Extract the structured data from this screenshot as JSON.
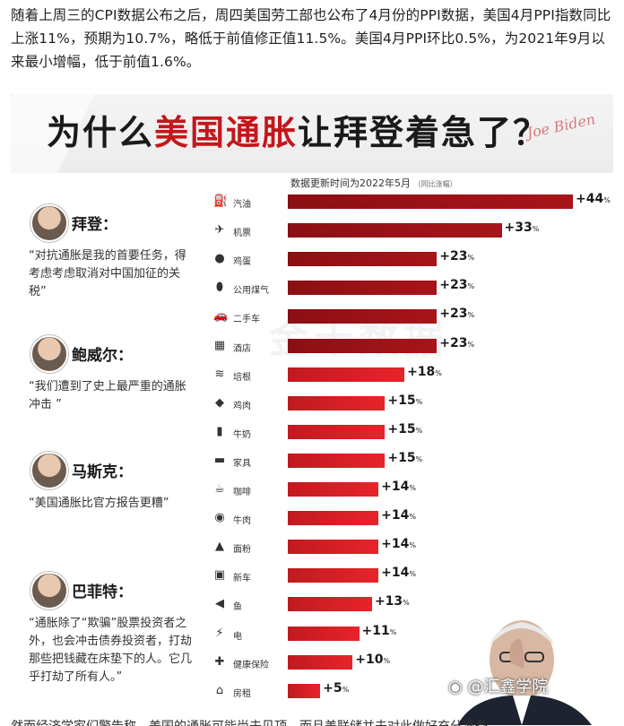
{
  "intro_text": "随着上周三的CPI数据公布之后，周四美国劳工部也公布了4月份的PPI数据，美国4月PPI指数同比上涨11%，预期为10.7%，略低于前值修正值11.5%。美国4月PPI环比0.5%，为2021年9月以来最小增幅，低于前值1.6%。",
  "infographic": {
    "title_part1": "为什么",
    "title_part2": "美国通胀",
    "title_part3": "让拜登着急了？",
    "signature": "Joe Biden",
    "subtitle": "数据更新时间为2022年5月",
    "subtitle_note": "（同比涨幅）",
    "faint_watermark": "金十数据"
  },
  "people": [
    {
      "name": "拜登：",
      "quote": "“对抗通胀是我的首要任务，得考虑考虑取消对中国加征的关税”"
    },
    {
      "name": "鲍威尔：",
      "quote": "“我们遭到了史上最严重的通胀冲击 ”"
    },
    {
      "name": "马斯克：",
      "quote": "“美国通胀比官方报告更糟”"
    },
    {
      "name": "巴菲特：",
      "quote": "“通胀除了“欺骗”股票投资者之外，也会冲击债券投资者，打劫那些把钱藏在床垫下的人。它几乎打劫了所有人。”"
    }
  ],
  "chart_data": {
    "type": "bar",
    "orientation": "horizontal",
    "title": "数据更新时间为2022年5月",
    "unit": "%",
    "categories": [
      "汽油",
      "机票",
      "鸡蛋",
      "公用煤气",
      "二手车",
      "酒店",
      "培根",
      "鸡肉",
      "牛奶",
      "家具",
      "咖啡",
      "牛肉",
      "面粉",
      "新车",
      "鱼",
      "电",
      "健康保险",
      "房租"
    ],
    "values": [
      44,
      33,
      23,
      23,
      23,
      23,
      18,
      15,
      15,
      15,
      14,
      14,
      14,
      14,
      13,
      11,
      10,
      5
    ],
    "value_labels": [
      "+44",
      "+33",
      "+23",
      "+23",
      "+23",
      "+23",
      "+18",
      "+15",
      "+15",
      "+15",
      "+14",
      "+14",
      "+14",
      "+14",
      "+13",
      "+11",
      "+10",
      "+5"
    ],
    "icons": [
      "fuel-icon",
      "plane-icon",
      "egg-icon",
      "gas-tank-icon",
      "car-icon",
      "hotel-icon",
      "bacon-icon",
      "chicken-icon",
      "milk-icon",
      "sofa-icon",
      "coffee-icon",
      "beef-icon",
      "flour-icon",
      "new-car-icon",
      "fish-icon",
      "lightning-icon",
      "health-icon",
      "house-icon"
    ],
    "xlim": [
      0,
      44
    ]
  },
  "colors": {
    "bar_dark": "#8b0f14",
    "bar_light": "#e8232a",
    "title_red": "#c4161c"
  },
  "watermark": "@汇鑫学院",
  "cut_text": "然而经济学家们警告称，美国的通胀可能尚未见顶，而且美联储并未对此做好充分准备……"
}
